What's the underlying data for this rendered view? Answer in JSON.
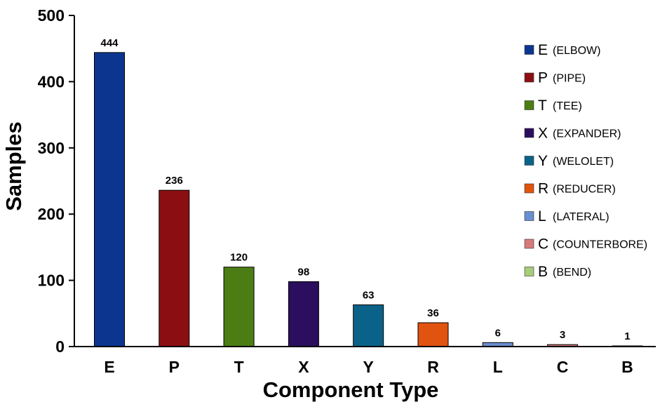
{
  "chart_data": {
    "type": "bar",
    "title": "",
    "xlabel": "Component Type",
    "ylabel": "Samples",
    "ylim": [
      0,
      500
    ],
    "yticks": [
      "0",
      "100",
      "200",
      "300",
      "400",
      "500"
    ],
    "grid": false,
    "legend_position": "top-right",
    "categories": [
      "E",
      "P",
      "T",
      "X",
      "Y",
      "R",
      "L",
      "C",
      "B"
    ],
    "values": [
      444,
      236,
      120,
      98,
      63,
      36,
      6,
      3,
      1
    ],
    "data_labels": [
      "444",
      "236",
      "120",
      "98",
      "63",
      "36",
      "6",
      "3",
      "1"
    ],
    "colors": [
      "#0c3590",
      "#8b0f12",
      "#4c7d14",
      "#2b0f5e",
      "#0b6289",
      "#e0540f",
      "#6a8ed0",
      "#d87a7a",
      "#a8cc7a"
    ],
    "legend": [
      {
        "code": "E",
        "desc": "(ELBOW)"
      },
      {
        "code": "P",
        "desc": "(PIPE)"
      },
      {
        "code": "T",
        "desc": "(TEE)"
      },
      {
        "code": "X",
        "desc": "(EXPANDER)"
      },
      {
        "code": "Y",
        "desc": "(WELOLET)"
      },
      {
        "code": "R",
        "desc": "(REDUCER)"
      },
      {
        "code": "L",
        "desc": "(LATERAL)"
      },
      {
        "code": "C",
        "desc": "(COUNTERBORE)"
      },
      {
        "code": "B",
        "desc": "(BEND)"
      }
    ]
  }
}
